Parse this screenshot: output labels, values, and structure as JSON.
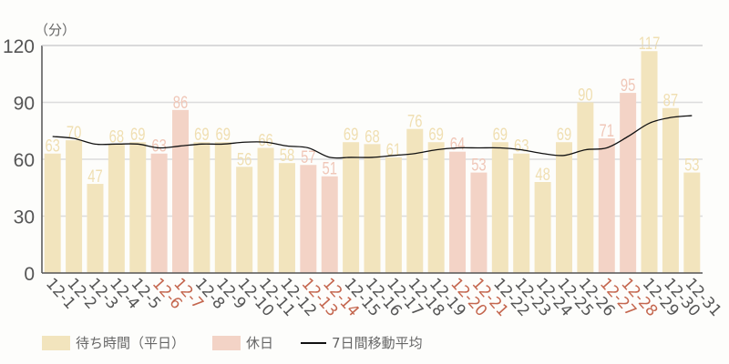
{
  "chart_data": {
    "type": "bar",
    "title": "",
    "unit_label": "（分）",
    "xlabel": "",
    "ylabel": "（分）",
    "ylim": [
      0,
      120
    ],
    "yticks": [
      0,
      30,
      60,
      90,
      120
    ],
    "grid": true,
    "legend_position": "bottom",
    "categories": [
      "12-1",
      "12-2",
      "12-3",
      "12-4",
      "12-5",
      "12-6",
      "12-7",
      "12-8",
      "12-9",
      "12-10",
      "12-11",
      "12-12",
      "12-13",
      "12-14",
      "12-15",
      "12-16",
      "12-17",
      "12-18",
      "12-19",
      "12-20",
      "12-21",
      "12-22",
      "12-23",
      "12-24",
      "12-25",
      "12-26",
      "12-27",
      "12-28",
      "12-29",
      "12-30",
      "12-31"
    ],
    "holidays": [
      "12-6",
      "12-7",
      "12-13",
      "12-14",
      "12-20",
      "12-21",
      "12-27",
      "12-28"
    ],
    "series": [
      {
        "name": "待ち時間（平日）/休日",
        "type": "bar",
        "values": [
          63,
          70,
          47,
          68,
          69,
          63,
          86,
          69,
          69,
          56,
          66,
          58,
          57,
          51,
          69,
          68,
          61,
          76,
          69,
          64,
          53,
          69,
          63,
          48,
          69,
          90,
          71,
          95,
          117,
          87,
          53
        ]
      },
      {
        "name": "7日間移動平均",
        "type": "line",
        "values": [
          72,
          71,
          68,
          68,
          68,
          66,
          67,
          68,
          68,
          69,
          69,
          67,
          66,
          61,
          61,
          61,
          62,
          63,
          65,
          66,
          66,
          66,
          65,
          63,
          62,
          65,
          66,
          72,
          79,
          82,
          83
        ]
      }
    ],
    "legend": [
      "待ち時間（平日）",
      "休日",
      "7日間移動平均"
    ]
  },
  "colors": {
    "weekday_bar": "#f2e4bd",
    "holiday_bar": "#f3d3c6",
    "weekday_label": "#f0dfb2",
    "holiday_label": "#f0c7b8",
    "holiday_tick": "#c4664e",
    "tick": "#555555",
    "grid": "#dcdcdc",
    "axis": "#555555",
    "line": "#111111"
  },
  "legend": {
    "weekday": "待ち時間（平日）",
    "holiday": "休日",
    "moving_avg": "7日間移動平均"
  }
}
